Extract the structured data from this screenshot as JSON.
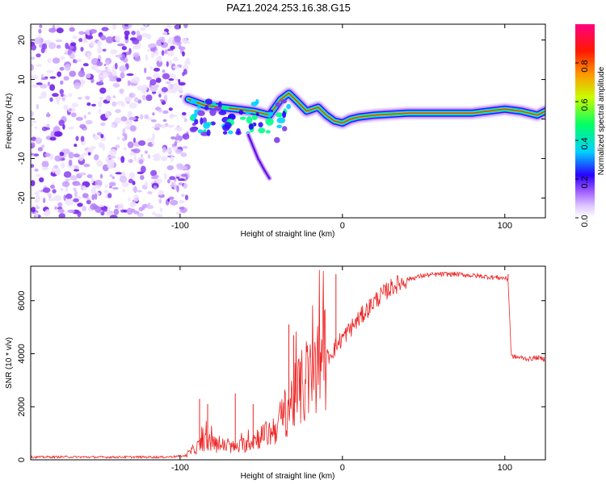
{
  "title": "PAZ1.2024.253.16.38.G15",
  "chart_data": [
    {
      "type": "heatmap",
      "xlabel": "Height of straight line (km)",
      "ylabel": "Frequency (Hz)",
      "xlim": [
        -192,
        125
      ],
      "ylim": [
        -25,
        24
      ],
      "x_ticks": [
        "-100",
        "0",
        "100"
      ],
      "y_ticks": [
        "-20",
        "-10",
        "0",
        "10",
        "20"
      ],
      "colorbar": {
        "label": "Normalized spectral amplitude",
        "range": [
          0,
          1
        ],
        "ticks": [
          "0.0",
          "0.2",
          "0.4",
          "0.6",
          "0.8"
        ],
        "colors": [
          "#ffffff",
          "#d8b4fe",
          "#7c3aed",
          "#1d00ff",
          "#00e5ff",
          "#00ff55",
          "#d4ff00",
          "#ff8c00",
          "#ff0000",
          "#ff007f"
        ]
      },
      "noise_region_x": [
        -192,
        -95
      ],
      "ridge": {
        "x": [
          -95,
          -85,
          -75,
          -65,
          -55,
          -45,
          -38,
          -33,
          -28,
          -22,
          -15,
          -10,
          -5,
          0,
          5,
          10,
          20,
          40,
          60,
          80,
          100,
          110,
          120,
          125
        ],
        "frequency": [
          5,
          3.5,
          3,
          2.5,
          2,
          1,
          5,
          6.5,
          4.5,
          2,
          3,
          1,
          -0.5,
          -1,
          0,
          0.5,
          1,
          1.5,
          1.5,
          1.5,
          2.5,
          2,
          1,
          2
        ]
      },
      "tail": {
        "x": [
          -58,
          -55,
          -52,
          -48,
          -45
        ],
        "frequency": [
          -4,
          -7,
          -10,
          -13,
          -15
        ]
      }
    },
    {
      "type": "line",
      "xlabel": "Height of straight line (km)",
      "ylabel": "SNR (10 * v/v)",
      "xlim": [
        -192,
        125
      ],
      "ylim": [
        0,
        7300
      ],
      "x_ticks": [
        "-100",
        "0",
        "100"
      ],
      "y_ticks": [
        "0",
        "2000",
        "4000",
        "6000"
      ],
      "series": [
        {
          "color": "#ee2222",
          "x": [
            -192,
            -170,
            -150,
            -130,
            -110,
            -97,
            -90,
            -85,
            -80,
            -75,
            -70,
            -65,
            -60,
            -55,
            -50,
            -45,
            -40,
            -35,
            -30,
            -25,
            -20,
            -15,
            -10,
            -5,
            0,
            10,
            20,
            30,
            40,
            50,
            60,
            70,
            80,
            90,
            100,
            102,
            104,
            110,
            115,
            120,
            125
          ],
          "y": [
            100,
            110,
            100,
            105,
            100,
            150,
            450,
            700,
            600,
            550,
            500,
            450,
            600,
            750,
            900,
            1000,
            1300,
            1800,
            2300,
            2700,
            3000,
            3500,
            3800,
            4200,
            4600,
            5300,
            6000,
            6500,
            6800,
            6950,
            7000,
            7000,
            6950,
            6900,
            6850,
            6800,
            3900,
            3850,
            3800,
            3850,
            3800
          ],
          "spikes": [
            {
              "x": -88,
              "y": 2300
            },
            {
              "x": -83,
              "y": 2100
            },
            {
              "x": -66,
              "y": 2500
            },
            {
              "x": -55,
              "y": 2100
            },
            {
              "x": -33,
              "y": 5100
            },
            {
              "x": -30,
              "y": 4700
            },
            {
              "x": -26,
              "y": 3700
            },
            {
              "x": -4,
              "y": 7000
            },
            {
              "x": 102,
              "y": 7000
            }
          ]
        }
      ]
    }
  ]
}
